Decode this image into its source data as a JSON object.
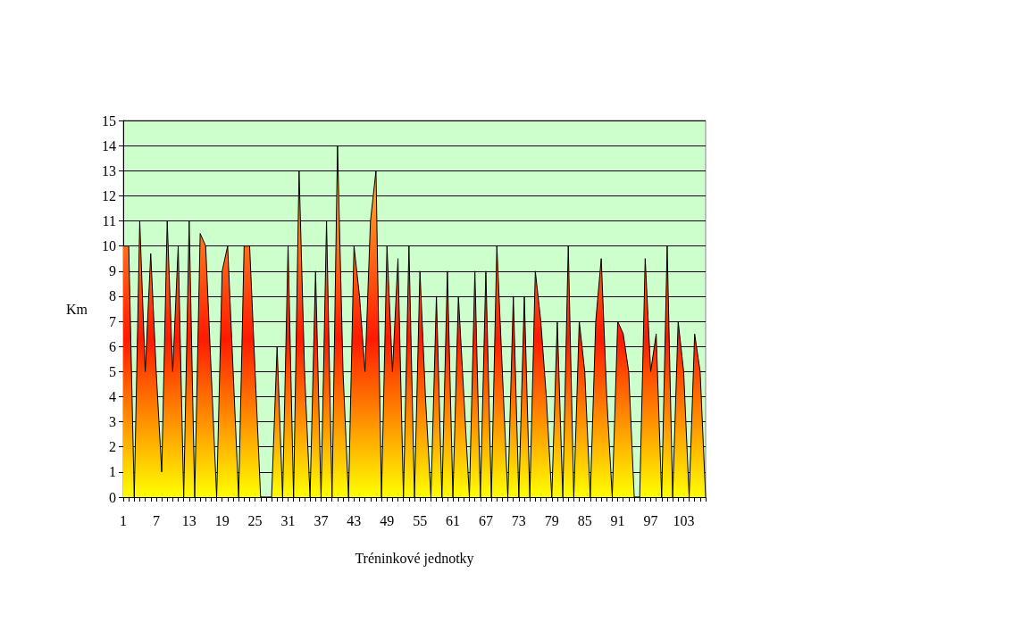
{
  "chart_data": {
    "type": "area",
    "xlabel": "Tréninkové jednotky",
    "ylabel": "Km",
    "categories": [
      "1",
      null,
      null,
      null,
      null,
      null,
      "7",
      null,
      null,
      null,
      null,
      null,
      "13",
      null,
      null,
      null,
      null,
      null,
      "19",
      null,
      null,
      null,
      null,
      null,
      "25",
      null,
      null,
      null,
      null,
      null,
      "31",
      null,
      null,
      null,
      null,
      null,
      "37",
      null,
      null,
      null,
      null,
      null,
      "43",
      null,
      null,
      null,
      null,
      null,
      "49",
      null,
      null,
      null,
      null,
      null,
      "55",
      null,
      null,
      null,
      null,
      null,
      "61",
      null,
      null,
      null,
      null,
      null,
      "67",
      null,
      null,
      null,
      null,
      null,
      "73",
      null,
      null,
      null,
      null,
      null,
      "79",
      null,
      null,
      null,
      null,
      null,
      "85",
      null,
      null,
      null,
      null,
      null,
      "91",
      null,
      null,
      null,
      null,
      null,
      "97",
      null,
      null,
      null,
      null,
      null,
      "103",
      null,
      null,
      null,
      null
    ],
    "series": [
      {
        "values": [
          10,
          10,
          0,
          11,
          5,
          9.7,
          5,
          1,
          11,
          5,
          10,
          0,
          11,
          0,
          10.5,
          10,
          5,
          0,
          9,
          10,
          5,
          0,
          10,
          10,
          5,
          0,
          0,
          0,
          6,
          0,
          10,
          0,
          13,
          5,
          0,
          9,
          0,
          11,
          0,
          14,
          5,
          0,
          10,
          8,
          5,
          11,
          13,
          0,
          10,
          5,
          9.5,
          0,
          10,
          0,
          9,
          4,
          0,
          8,
          0,
          9,
          0,
          8,
          4,
          0,
          9,
          0,
          9,
          0,
          10,
          5,
          0,
          8,
          0,
          8,
          0,
          9,
          7,
          4,
          0,
          7,
          0,
          10,
          0,
          7,
          5,
          0,
          7,
          9.5,
          4,
          0,
          7,
          6.5,
          5,
          0,
          0,
          9.5,
          5,
          6.5,
          0,
          10,
          0,
          7,
          5,
          0,
          6.5,
          5,
          0
        ]
      }
    ],
    "ylim": [
      0,
      15
    ],
    "yticks": [
      0,
      1,
      2,
      3,
      4,
      5,
      6,
      7,
      8,
      9,
      10,
      11,
      12,
      13,
      14,
      15
    ],
    "grid": "y"
  }
}
